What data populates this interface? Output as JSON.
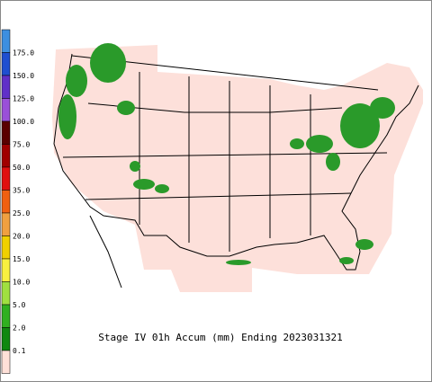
{
  "legend": {
    "labels": [
      "175.0",
      "150.0",
      "125.0",
      "100.0",
      "75.0",
      "50.0",
      "35.0",
      "25.0",
      "20.0",
      "15.0",
      "10.0",
      "5.0",
      "2.0",
      "0.1"
    ],
    "colors": [
      "#3d8fe0",
      "#1f4fd0",
      "#6030c8",
      "#9a50d8",
      "#5a0000",
      "#a00000",
      "#e01010",
      "#f06010",
      "#f0a040",
      "#f0d000",
      "#f8f040",
      "#a0e040",
      "#30b020",
      "#108810",
      "#ffe0d8"
    ]
  },
  "map": {
    "caption": "Stage IV 01h Accum (mm) Ending 2023031321"
  }
}
